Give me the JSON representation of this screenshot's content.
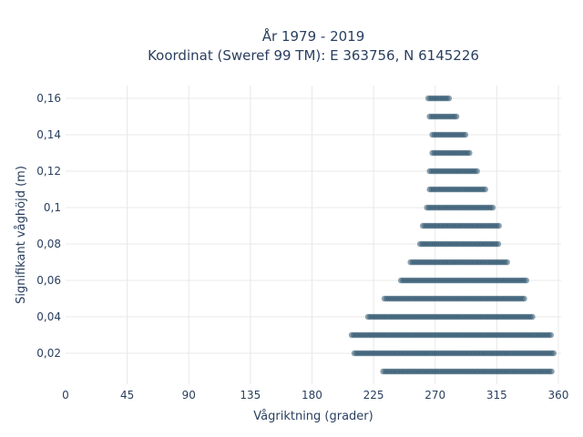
{
  "chart_data": {
    "type": "scatter",
    "title": "År 1979 - 2019",
    "subtitle": "Koordinat (Sweref 99 TM): E 363756, N 6145226",
    "xlabel": "Vågriktning (grader)",
    "ylabel": "Signifikant våghöjd (m)",
    "xlim": [
      0,
      362
    ],
    "ylim": [
      0.003,
      0.167
    ],
    "x_ticks": [
      {
        "value": 0,
        "label": "0"
      },
      {
        "value": 45,
        "label": "45"
      },
      {
        "value": 90,
        "label": "90"
      },
      {
        "value": 135,
        "label": "135"
      },
      {
        "value": 180,
        "label": "180"
      },
      {
        "value": 225,
        "label": "225"
      },
      {
        "value": 270,
        "label": "270"
      },
      {
        "value": 315,
        "label": "315"
      },
      {
        "value": 360,
        "label": "360"
      }
    ],
    "y_ticks": [
      {
        "value": 0.02,
        "label": "0,02"
      },
      {
        "value": 0.04,
        "label": "0,04"
      },
      {
        "value": 0.06,
        "label": "0,06"
      },
      {
        "value": 0.08,
        "label": "0,08"
      },
      {
        "value": 0.1,
        "label": "0,1"
      },
      {
        "value": 0.12,
        "label": "0,12"
      },
      {
        "value": 0.14,
        "label": "0,14"
      },
      {
        "value": 0.16,
        "label": "0,16"
      }
    ],
    "grid": true,
    "marker_color": "#2f5670",
    "series": [
      {
        "rows": [
          {
            "y": 0.01,
            "x_min": 232,
            "x_max": 356
          },
          {
            "y": 0.02,
            "x_min": 211,
            "x_max": 357
          },
          {
            "y": 0.03,
            "x_min": 209,
            "x_max": 355
          },
          {
            "y": 0.04,
            "x_min": 221,
            "x_max": 341
          },
          {
            "y": 0.05,
            "x_min": 233,
            "x_max": 336
          },
          {
            "y": 0.06,
            "x_min": 245,
            "x_max": 337
          },
          {
            "y": 0.07,
            "x_min": 252,
            "x_max": 323
          },
          {
            "y": 0.08,
            "x_min": 259,
            "x_max": 317
          },
          {
            "y": 0.09,
            "x_min": 261,
            "x_max": 317
          },
          {
            "y": 0.1,
            "x_min": 264,
            "x_max": 312
          },
          {
            "y": 0.11,
            "x_min": 266,
            "x_max": 307
          },
          {
            "y": 0.12,
            "x_min": 266,
            "x_max": 301
          },
          {
            "y": 0.13,
            "x_min": 268,
            "x_max": 296
          },
          {
            "y": 0.14,
            "x_min": 268,
            "x_max": 292
          },
          {
            "y": 0.15,
            "x_min": 266,
            "x_max": 286
          },
          {
            "y": 0.16,
            "x_min": 265,
            "x_max": 280
          }
        ]
      }
    ]
  }
}
